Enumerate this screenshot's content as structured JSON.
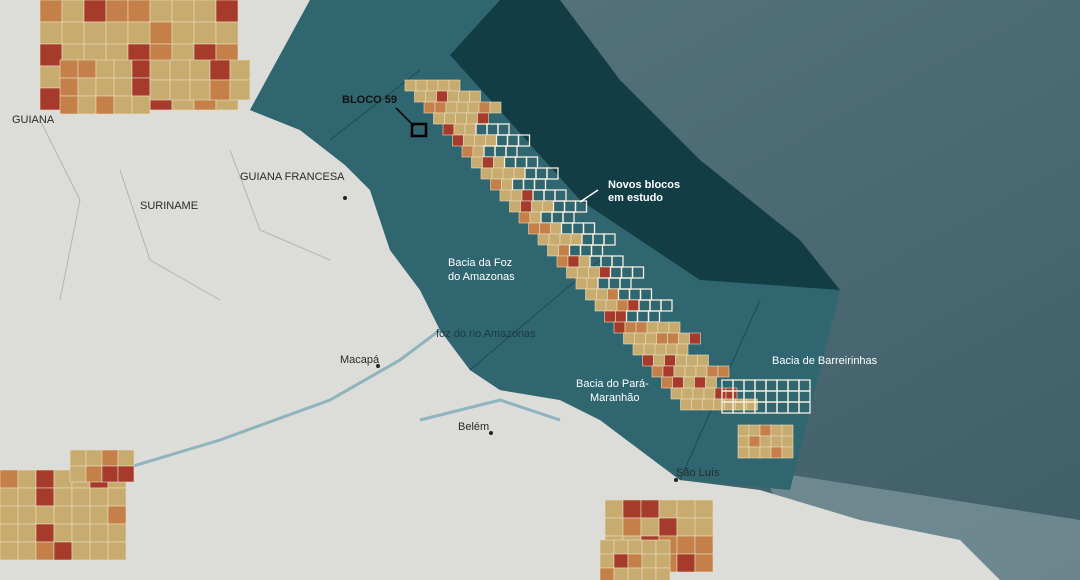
{
  "labels": {
    "guiana": "GUIANA",
    "guiana_francesa": "GUIANA FRANCESA",
    "suriname": "SURINAME",
    "bloco": "BLOCO 59",
    "novos_blocos": [
      "Novos blocos",
      "em estudo"
    ],
    "foz_basin": [
      "Bacia da Foz",
      "do Amazonas"
    ],
    "foz_rio": "foz do rio Amazonas",
    "macapa": "Macapá",
    "belem": "Belém",
    "sao_luis": "São Luís",
    "para_basin": [
      "Bacia do Pará-",
      "Maranhão"
    ],
    "barreirinhas": "Bacia de Barreirinhas"
  }
}
